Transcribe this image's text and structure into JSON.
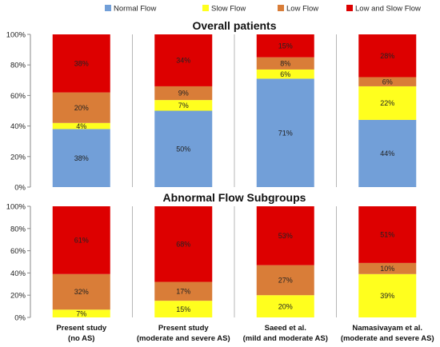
{
  "colors": {
    "normal": "#729fd8",
    "slow": "#ffff1e",
    "low": "#d97d38",
    "low_slow": "#dd0000",
    "divider": "#b7b7b7",
    "axis": "#888888"
  },
  "legend": [
    {
      "key": "normal",
      "label": "Normal Flow"
    },
    {
      "key": "slow",
      "label": "Slow Flow"
    },
    {
      "key": "low",
      "label": "Low Flow"
    },
    {
      "key": "low_slow",
      "label": "Low and Slow Flow"
    }
  ],
  "x_labels": [
    {
      "line1": "Present study",
      "line2": "(no AS)"
    },
    {
      "line1": "Present study",
      "line2": "(moderate and severe AS)"
    },
    {
      "line1": "Saeed et al.",
      "line2": "(mild and moderate AS)"
    },
    {
      "line1": "Namasivayam et al.",
      "line2": "(moderate and severe AS)"
    }
  ],
  "chart_data": [
    {
      "type": "bar",
      "stacked": true,
      "title": "Overall patients",
      "categories": [
        "Present study (no AS)",
        "Present study (moderate and severe AS)",
        "Saeed et al. (mild and moderate AS)",
        "Namasivayam et al. (moderate and severe AS)"
      ],
      "ylim": [
        0,
        100
      ],
      "yticks": [
        "0%",
        "20%",
        "40%",
        "60%",
        "80%",
        "100%"
      ],
      "series": [
        {
          "name": "Normal Flow",
          "key": "normal",
          "values": [
            38,
            50,
            71,
            44
          ]
        },
        {
          "name": "Slow Flow",
          "key": "slow",
          "values": [
            4,
            7,
            6,
            22
          ]
        },
        {
          "name": "Low Flow",
          "key": "low",
          "values": [
            20,
            9,
            8,
            6
          ]
        },
        {
          "name": "Low and Slow Flow",
          "key": "low_slow",
          "values": [
            38,
            34,
            15,
            28
          ]
        }
      ]
    },
    {
      "type": "bar",
      "stacked": true,
      "title": "Abnormal Flow Subgroups",
      "categories": [
        "Present study (no AS)",
        "Present study (moderate and severe AS)",
        "Saeed et al. (mild and moderate AS)",
        "Namasivayam et al. (moderate and severe AS)"
      ],
      "ylim": [
        0,
        100
      ],
      "yticks": [
        "0%",
        "20%",
        "40%",
        "60%",
        "80%",
        "100%"
      ],
      "series": [
        {
          "name": "Slow Flow",
          "key": "slow",
          "values": [
            7,
            15,
            20,
            39
          ]
        },
        {
          "name": "Low Flow",
          "key": "low",
          "values": [
            32,
            17,
            27,
            10
          ]
        },
        {
          "name": "Low and Slow Flow",
          "key": "low_slow",
          "values": [
            61,
            68,
            53,
            51
          ]
        }
      ]
    }
  ]
}
